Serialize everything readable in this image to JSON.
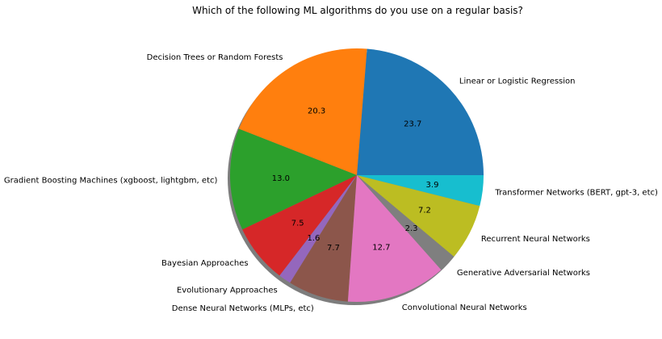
{
  "chart_data": {
    "type": "pie",
    "title": "Which of the following ML algorithms do you use on a regular basis?",
    "slices": [
      {
        "label": "Linear or Logistic Regression",
        "value": 23.7,
        "value_label": "23.7",
        "color": "#1f77b4"
      },
      {
        "label": "Decision Trees or Random Forests",
        "value": 20.3,
        "value_label": "20.3",
        "color": "#ff7f0e"
      },
      {
        "label": "Gradient Boosting Machines (xgboost, lightgbm, etc)",
        "value": 13.0,
        "value_label": "13.0",
        "color": "#2ca02c"
      },
      {
        "label": "Bayesian Approaches",
        "value": 7.5,
        "value_label": "7.5",
        "color": "#d62728"
      },
      {
        "label": "Evolutionary Approaches",
        "value": 1.6,
        "value_label": "1.6",
        "color": "#9467bd"
      },
      {
        "label": "Dense Neural Networks (MLPs, etc)",
        "value": 7.7,
        "value_label": "7.7",
        "color": "#8c564b"
      },
      {
        "label": "Convolutional Neural Networks",
        "value": 12.7,
        "value_label": "12.7",
        "color": "#e377c2"
      },
      {
        "label": "Generative Adversarial Networks",
        "value": 2.3,
        "value_label": "2.3",
        "color": "#7f7f7f"
      },
      {
        "label": "Recurrent Neural Networks",
        "value": 7.2,
        "value_label": "7.2",
        "color": "#bcbd22"
      },
      {
        "label": "Transformer Networks (BERT, gpt-3, etc)",
        "value": 3.9,
        "value_label": "3.9",
        "color": "#17becf"
      }
    ],
    "start_angle_deg": 0,
    "direction": "counterclockwise",
    "shadow": true,
    "legend": "none"
  }
}
